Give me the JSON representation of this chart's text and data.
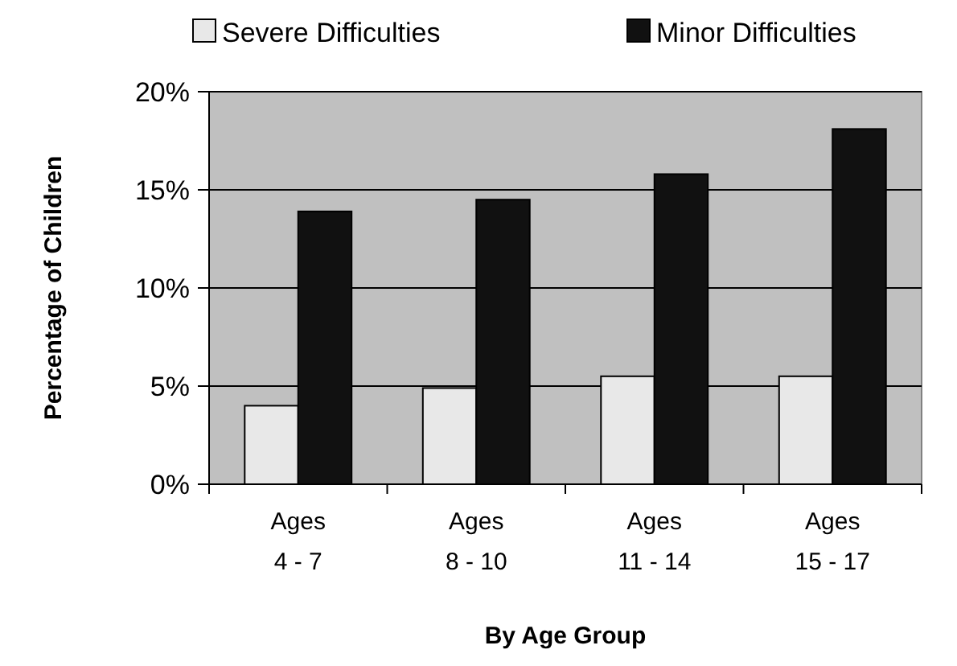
{
  "chart_data": {
    "type": "bar",
    "xlabel": "By Age Group",
    "ylabel": "Percentage of Children",
    "categories": [
      "Ages\n4 - 7",
      "Ages\n8 - 10",
      "Ages\n11 - 14",
      "Ages\n15 - 17"
    ],
    "series": [
      {
        "name": "Severe Difficulties",
        "color": "#e8e8e8",
        "values": [
          4.0,
          4.9,
          5.5,
          5.5
        ]
      },
      {
        "name": "Minor Difficulties",
        "color": "#111111",
        "values": [
          13.9,
          14.5,
          15.8,
          18.1
        ]
      }
    ],
    "ylim": [
      0,
      20
    ],
    "yticks": [
      {
        "value": 0,
        "label": "0%"
      },
      {
        "value": 5,
        "label": "5%"
      },
      {
        "value": 10,
        "label": "10%"
      },
      {
        "value": 15,
        "label": "15%"
      },
      {
        "value": 20,
        "label": "20%"
      }
    ],
    "grid": "y",
    "legend": "top"
  }
}
